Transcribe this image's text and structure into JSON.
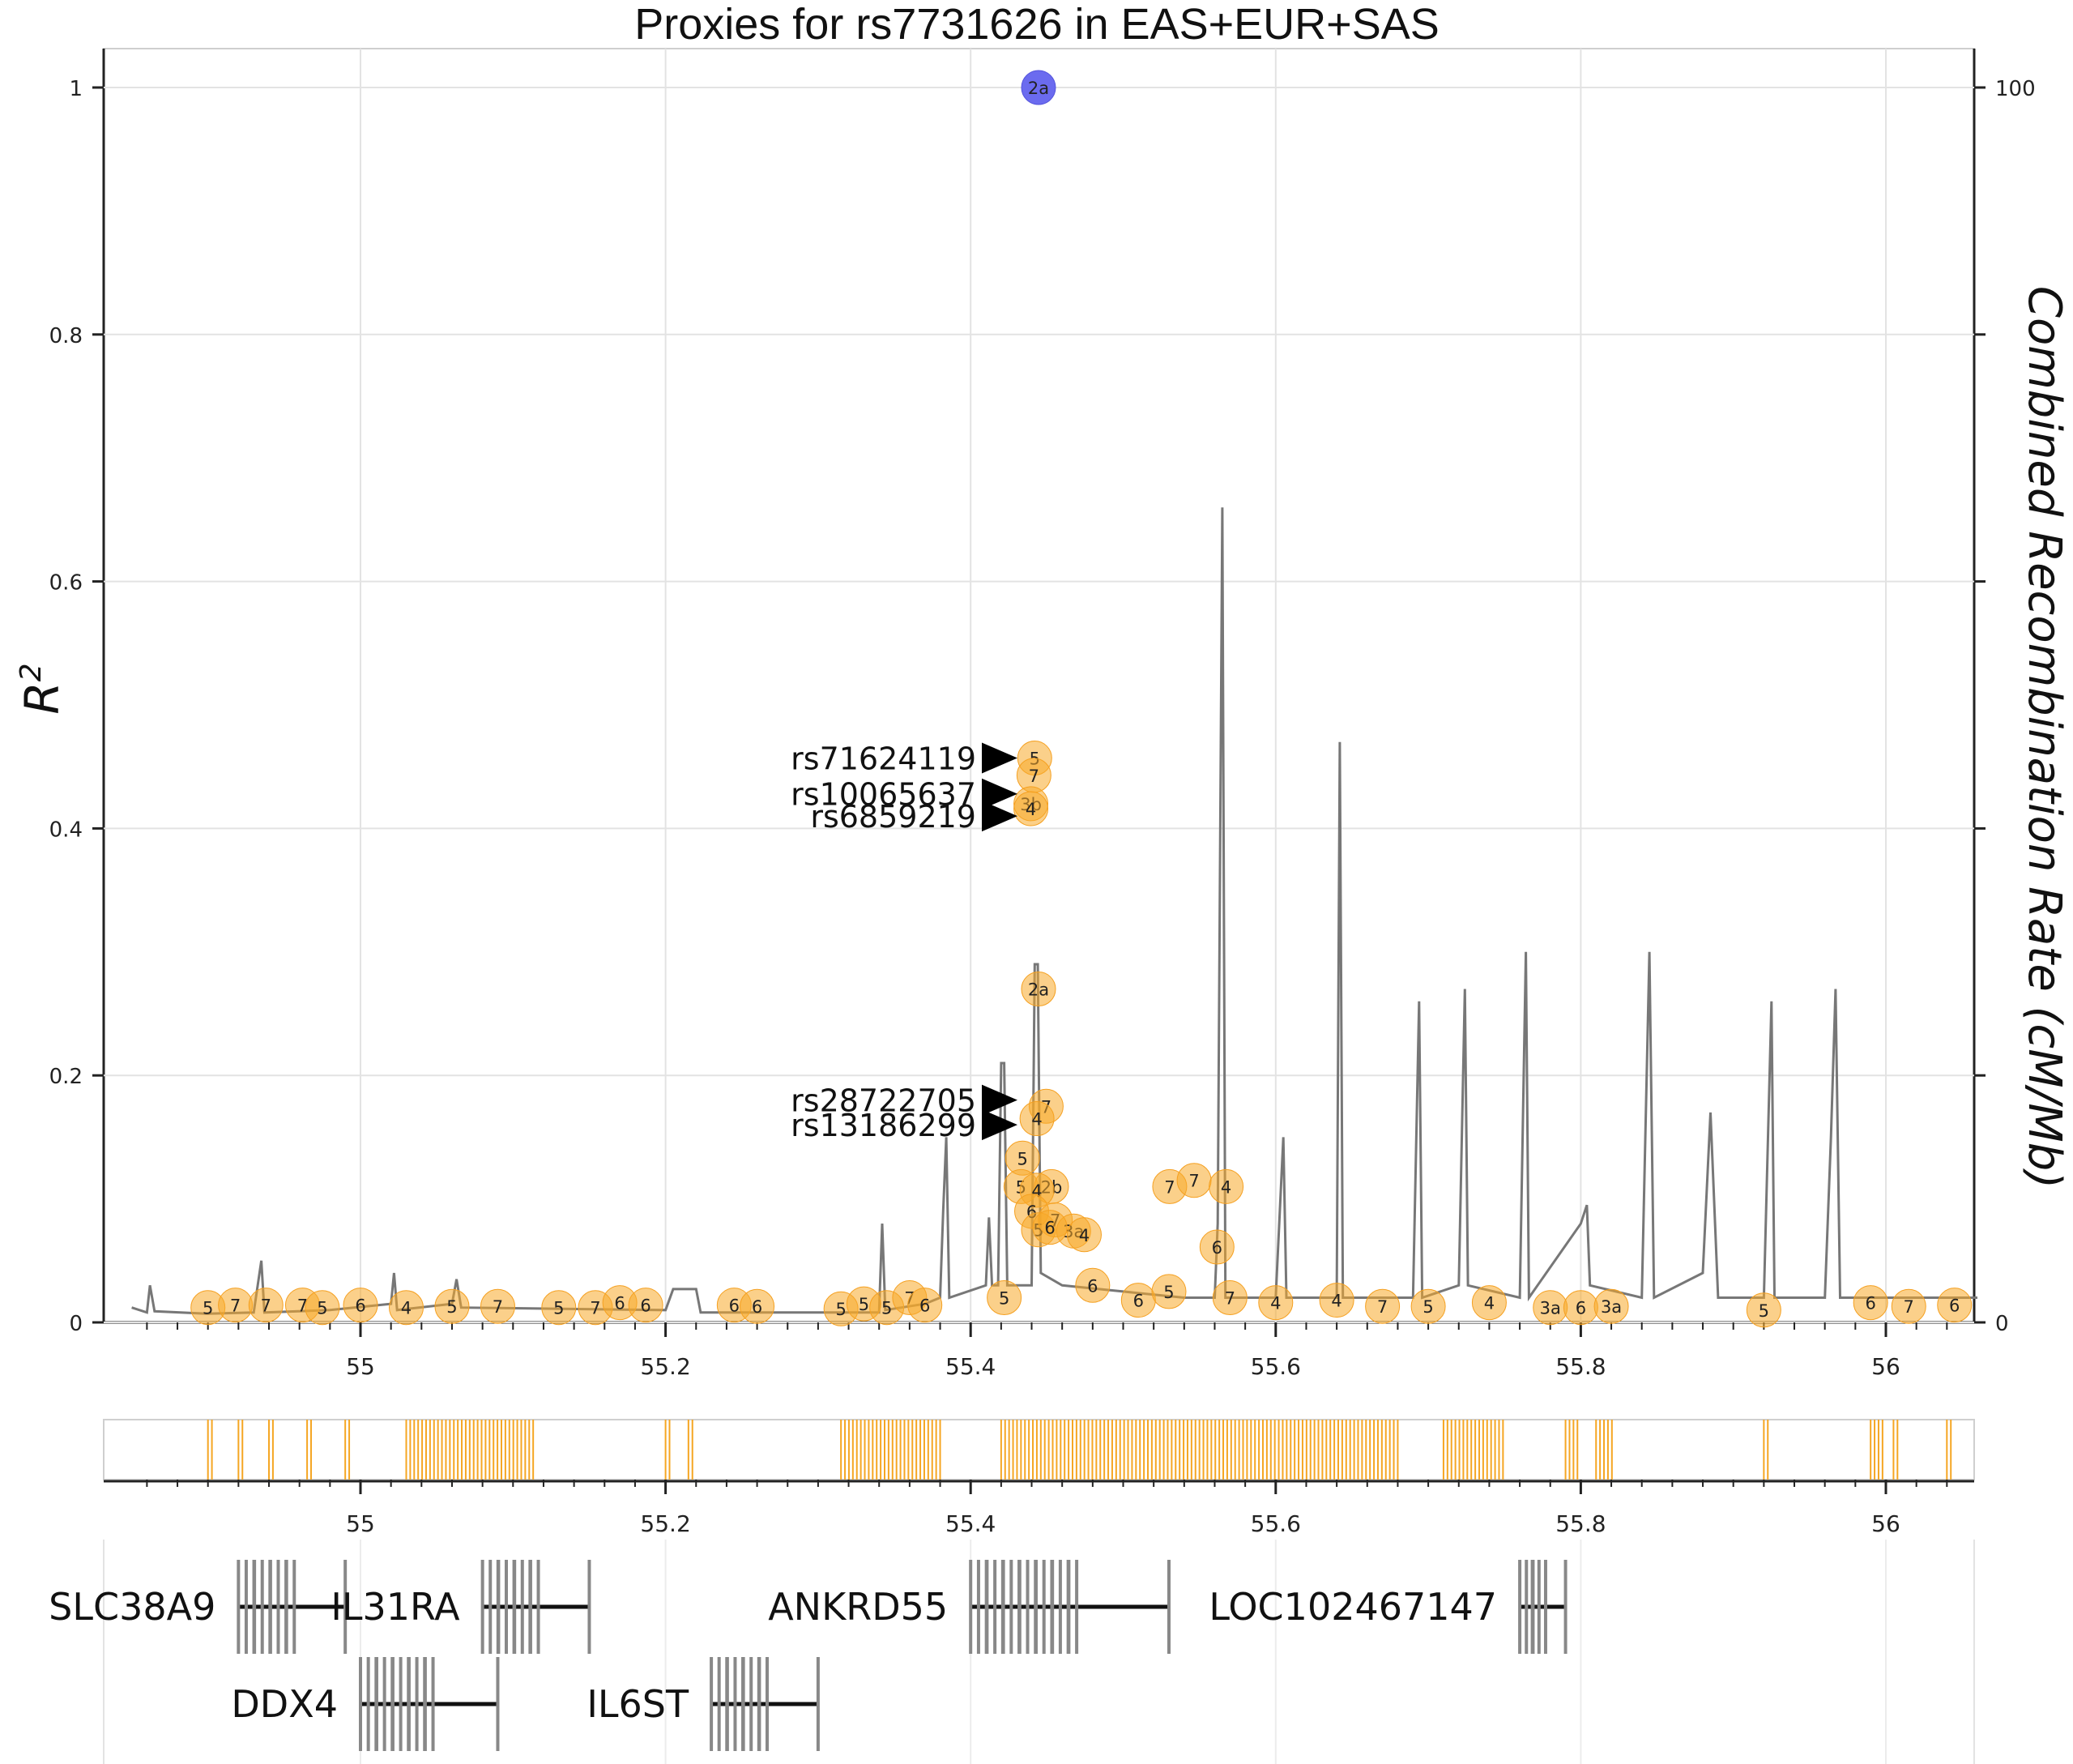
{
  "chart_data": {
    "type": "scatter",
    "title": "Proxies for rs7731626 in EAS+EUR+SAS",
    "ylabel_left": "R",
    "ylabel_left_sup": "2",
    "ylabel_right": "Combined Recombination Rate (cM/Mb)",
    "xlim": [
      54.84,
      56.06
    ],
    "ylim_left": [
      0,
      1
    ],
    "ylim_right": [
      0,
      100
    ],
    "x_ticks": [
      55,
      55.2,
      55.4,
      55.6,
      55.8,
      56
    ],
    "x_tick_labels": [
      "55",
      "55.2",
      "55.4",
      "55.6",
      "55.8",
      "56"
    ],
    "y_ticks": [
      0,
      0.2,
      0.4,
      0.6,
      0.8,
      1
    ],
    "y_tick_labels": [
      "0",
      "0.2",
      "0.4",
      "0.6",
      "0.8",
      "1"
    ],
    "y_right_ticks": [
      0,
      100
    ],
    "y_right_tick_labels": [
      "0",
      "100"
    ],
    "query_snp": {
      "x": 55.4445,
      "r2": 1.0,
      "label": "2a",
      "color": "#6b6bef"
    },
    "points": [
      {
        "x": 55.442,
        "r2": 0.457,
        "label": "5"
      },
      {
        "x": 55.4415,
        "r2": 0.443,
        "label": "7"
      },
      {
        "x": 55.4395,
        "r2": 0.42,
        "label": "3b"
      },
      {
        "x": 55.4395,
        "r2": 0.416,
        "label": "4"
      },
      {
        "x": 55.4445,
        "r2": 0.27,
        "label": "2a"
      },
      {
        "x": 55.4495,
        "r2": 0.175,
        "label": "7"
      },
      {
        "x": 55.4435,
        "r2": 0.165,
        "label": "4"
      },
      {
        "x": 55.434,
        "r2": 0.133,
        "label": "5"
      },
      {
        "x": 55.433,
        "r2": 0.11,
        "label": "5"
      },
      {
        "x": 55.453,
        "r2": 0.11,
        "label": "2b"
      },
      {
        "x": 55.4435,
        "r2": 0.107,
        "label": "4"
      },
      {
        "x": 55.44,
        "r2": 0.09,
        "label": "6"
      },
      {
        "x": 55.4445,
        "r2": 0.075,
        "label": "5"
      },
      {
        "x": 55.4555,
        "r2": 0.083,
        "label": "7"
      },
      {
        "x": 55.4675,
        "r2": 0.074,
        "label": "3a"
      },
      {
        "x": 55.452,
        "r2": 0.077,
        "label": "6"
      },
      {
        "x": 55.4745,
        "r2": 0.071,
        "label": "4"
      },
      {
        "x": 55.5305,
        "r2": 0.11,
        "label": "7"
      },
      {
        "x": 55.5465,
        "r2": 0.115,
        "label": "7"
      },
      {
        "x": 55.5675,
        "r2": 0.11,
        "label": "4"
      },
      {
        "x": 55.5615,
        "r2": 0.061,
        "label": "6"
      },
      {
        "x": 54.9,
        "r2": 0.012,
        "label": "5"
      },
      {
        "x": 54.918,
        "r2": 0.014,
        "label": "7"
      },
      {
        "x": 54.938,
        "r2": 0.014,
        "label": "7"
      },
      {
        "x": 54.962,
        "r2": 0.014,
        "label": "7"
      },
      {
        "x": 54.975,
        "r2": 0.012,
        "label": "5"
      },
      {
        "x": 55.0,
        "r2": 0.014,
        "label": "6"
      },
      {
        "x": 55.03,
        "r2": 0.012,
        "label": "4"
      },
      {
        "x": 55.06,
        "r2": 0.013,
        "label": "5"
      },
      {
        "x": 55.09,
        "r2": 0.013,
        "label": "7"
      },
      {
        "x": 55.13,
        "r2": 0.012,
        "label": "5"
      },
      {
        "x": 55.154,
        "r2": 0.012,
        "label": "7"
      },
      {
        "x": 55.17,
        "r2": 0.016,
        "label": "6"
      },
      {
        "x": 55.187,
        "r2": 0.014,
        "label": "6"
      },
      {
        "x": 55.245,
        "r2": 0.014,
        "label": "6"
      },
      {
        "x": 55.26,
        "r2": 0.013,
        "label": "6"
      },
      {
        "x": 55.315,
        "r2": 0.011,
        "label": "5"
      },
      {
        "x": 55.33,
        "r2": 0.015,
        "label": "5"
      },
      {
        "x": 55.345,
        "r2": 0.012,
        "label": "5"
      },
      {
        "x": 55.36,
        "r2": 0.02,
        "label": "7"
      },
      {
        "x": 55.37,
        "r2": 0.014,
        "label": "6"
      },
      {
        "x": 55.422,
        "r2": 0.02,
        "label": "5"
      },
      {
        "x": 55.48,
        "r2": 0.03,
        "label": "6"
      },
      {
        "x": 55.51,
        "r2": 0.018,
        "label": "6"
      },
      {
        "x": 55.53,
        "r2": 0.025,
        "label": "5"
      },
      {
        "x": 55.57,
        "r2": 0.02,
        "label": "7"
      },
      {
        "x": 55.6,
        "r2": 0.016,
        "label": "4"
      },
      {
        "x": 55.64,
        "r2": 0.018,
        "label": "4"
      },
      {
        "x": 55.67,
        "r2": 0.013,
        "label": "7"
      },
      {
        "x": 55.7,
        "r2": 0.013,
        "label": "5"
      },
      {
        "x": 55.74,
        "r2": 0.016,
        "label": "4"
      },
      {
        "x": 55.78,
        "r2": 0.012,
        "label": "3a"
      },
      {
        "x": 55.8,
        "r2": 0.012,
        "label": "6"
      },
      {
        "x": 55.82,
        "r2": 0.013,
        "label": "3a"
      },
      {
        "x": 55.92,
        "r2": 0.01,
        "label": "5"
      },
      {
        "x": 55.99,
        "r2": 0.016,
        "label": "6"
      },
      {
        "x": 56.015,
        "r2": 0.013,
        "label": "7"
      },
      {
        "x": 56.045,
        "r2": 0.014,
        "label": "6"
      }
    ],
    "snp_annotations": [
      {
        "id": "rs71624119",
        "r2": 0.457
      },
      {
        "id": "rs10065637",
        "r2": 0.428
      },
      {
        "id": "rs6859219",
        "r2": 0.41
      },
      {
        "id": "rs28722705",
        "r2": 0.18
      },
      {
        "id": "rs13186299",
        "r2": 0.16
      }
    ],
    "recombination": [
      [
        54.85,
        1.2
      ],
      [
        54.86,
        0.8
      ],
      [
        54.862,
        3
      ],
      [
        54.865,
        0.9
      ],
      [
        54.9,
        0.7
      ],
      [
        54.93,
        0.8
      ],
      [
        54.935,
        5
      ],
      [
        54.937,
        0.8
      ],
      [
        54.98,
        1
      ],
      [
        55.02,
        1.5
      ],
      [
        55.022,
        4
      ],
      [
        55.024,
        1
      ],
      [
        55.06,
        1.5
      ],
      [
        55.063,
        3.5
      ],
      [
        55.066,
        1.2
      ],
      [
        55.2,
        1
      ],
      [
        55.205,
        2.7
      ],
      [
        55.22,
        2.7
      ],
      [
        55.223,
        0.8
      ],
      [
        55.3,
        0.8
      ],
      [
        55.34,
        0.8
      ],
      [
        55.342,
        8
      ],
      [
        55.344,
        1
      ],
      [
        55.37,
        1.5
      ],
      [
        55.38,
        2
      ],
      [
        55.382,
        9
      ],
      [
        55.384,
        15
      ],
      [
        55.386,
        2
      ],
      [
        55.41,
        3
      ],
      [
        55.412,
        8.5
      ],
      [
        55.414,
        3
      ],
      [
        55.418,
        3
      ],
      [
        55.42,
        21
      ],
      [
        55.422,
        21
      ],
      [
        55.424,
        3
      ],
      [
        55.44,
        3
      ],
      [
        55.442,
        29
      ],
      [
        55.444,
        29
      ],
      [
        55.446,
        4
      ],
      [
        55.46,
        3
      ],
      [
        55.5,
        2.5
      ],
      [
        55.54,
        2
      ],
      [
        55.56,
        2
      ],
      [
        55.562,
        8
      ],
      [
        55.565,
        66
      ],
      [
        55.567,
        2
      ],
      [
        55.6,
        2
      ],
      [
        55.605,
        15
      ],
      [
        55.607,
        2
      ],
      [
        55.64,
        2
      ],
      [
        55.642,
        47
      ],
      [
        55.644,
        2
      ],
      [
        55.69,
        2
      ],
      [
        55.694,
        26
      ],
      [
        55.696,
        2
      ],
      [
        55.72,
        3
      ],
      [
        55.724,
        27
      ],
      [
        55.726,
        3
      ],
      [
        55.76,
        2
      ],
      [
        55.764,
        30
      ],
      [
        55.766,
        2
      ],
      [
        55.8,
        8
      ],
      [
        55.804,
        9.5
      ],
      [
        55.806,
        3
      ],
      [
        55.84,
        2
      ],
      [
        55.845,
        30
      ],
      [
        55.848,
        2
      ],
      [
        55.88,
        4
      ],
      [
        55.885,
        17
      ],
      [
        55.89,
        2
      ],
      [
        55.92,
        2
      ],
      [
        55.925,
        26
      ],
      [
        55.927,
        2
      ],
      [
        55.96,
        2
      ],
      [
        55.964,
        15
      ],
      [
        55.967,
        27
      ],
      [
        55.97,
        2
      ],
      [
        56.0,
        2
      ],
      [
        56.04,
        2
      ],
      [
        56.06,
        2
      ]
    ],
    "variant_density": [
      [
        54.9,
        54.905
      ],
      [
        54.92,
        54.925
      ],
      [
        54.94,
        54.945
      ],
      [
        54.965,
        54.97
      ],
      [
        54.99,
        54.995
      ],
      [
        55.03,
        55.115
      ],
      [
        55.2,
        55.205
      ],
      [
        55.215,
        55.22
      ],
      [
        55.315,
        55.38
      ],
      [
        55.42,
        55.68
      ],
      [
        55.71,
        55.75
      ],
      [
        55.79,
        55.8
      ],
      [
        55.81,
        55.822
      ],
      [
        55.92,
        55.925
      ],
      [
        55.99,
        56.0
      ],
      [
        56.005,
        56.01
      ],
      [
        56.04,
        56.045
      ]
    ],
    "genes": [
      {
        "name": "SLC38A9",
        "start": 54.92,
        "end": 54.99,
        "row": 0
      },
      {
        "name": "IL31RA",
        "start": 55.08,
        "end": 55.15,
        "row": 0
      },
      {
        "name": "ANKRD55",
        "start": 55.4,
        "end": 55.53,
        "row": 0
      },
      {
        "name": "LOC102467147",
        "start": 55.76,
        "end": 55.79,
        "row": 0
      },
      {
        "name": "DDX4",
        "start": 55.0,
        "end": 55.09,
        "row": 1
      },
      {
        "name": "IL6ST",
        "start": 55.23,
        "end": 55.3,
        "row": 1
      }
    ]
  }
}
